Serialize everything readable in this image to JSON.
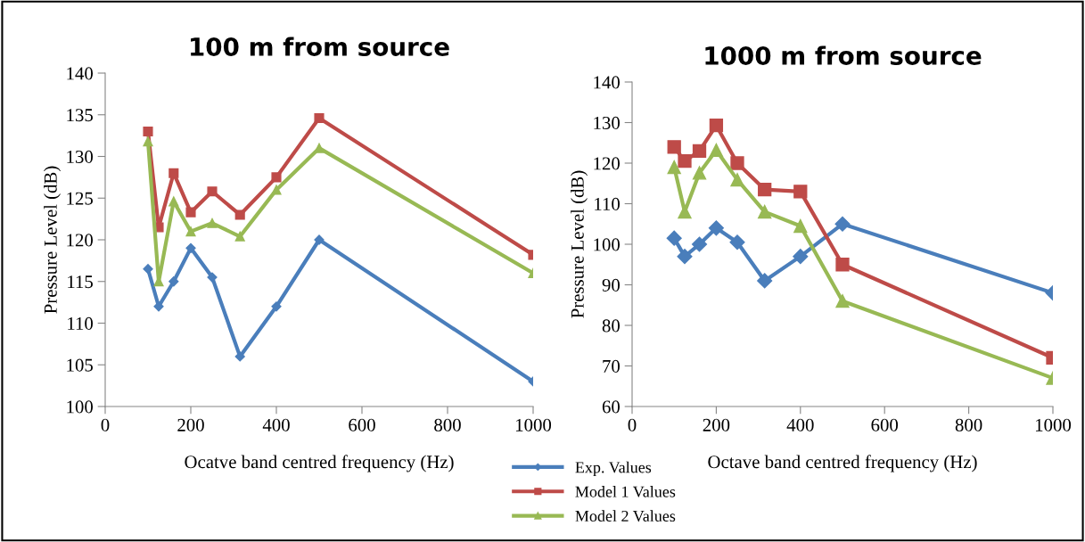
{
  "chart_data": [
    {
      "type": "line",
      "title": "100 m from source",
      "xlabel": "Ocatve band centred frequency (Hz)",
      "ylabel": "Pressure Level (dB)",
      "x": [
        100,
        125,
        160,
        200,
        250,
        315,
        400,
        500,
        1000
      ],
      "series": [
        {
          "name": "Exp. Values",
          "color": "#4a7ebb",
          "marker": "diamond",
          "values": [
            116.5,
            112,
            115,
            119,
            115.5,
            106,
            112,
            120,
            103
          ]
        },
        {
          "name": "Model 1 Values",
          "color": "#be4b48",
          "marker": "square",
          "values": [
            133,
            121.5,
            128,
            123.3,
            125.8,
            123,
            127.5,
            134.6,
            118.2
          ]
        },
        {
          "name": "Model 2 Values",
          "color": "#98b954",
          "marker": "triangle",
          "values": [
            131.8,
            115,
            124.6,
            121,
            122,
            120.4,
            126,
            131,
            116
          ]
        }
      ],
      "xlim": [
        0,
        1000
      ],
      "xticks": [
        0,
        200,
        400,
        600,
        800,
        1000
      ],
      "ylim": [
        100,
        140
      ],
      "yticks": [
        100,
        105,
        110,
        115,
        120,
        125,
        130,
        135,
        140
      ],
      "grid": false,
      "legend": "bottom right"
    },
    {
      "type": "line",
      "title": "1000 m from source",
      "xlabel": "Octave band centred frequency (Hz)",
      "ylabel": "Pressure Level (dB)",
      "x": [
        100,
        125,
        160,
        200,
        250,
        315,
        400,
        500,
        1000
      ],
      "series": [
        {
          "color": "#4a7ebb",
          "marker": "diamond",
          "values": [
            101.5,
            97,
            100,
            104,
            100.5,
            91,
            97,
            105,
            88
          ]
        },
        {
          "color": "#be4b48",
          "marker": "square",
          "values": [
            124,
            120.5,
            123,
            129.3,
            120,
            113.5,
            113,
            95,
            72
          ]
        },
        {
          "color": "#98b954",
          "marker": "triangle",
          "values": [
            119,
            108,
            117.6,
            123.2,
            115.9,
            108,
            104.5,
            86,
            67
          ]
        }
      ],
      "xlim": [
        0,
        1000
      ],
      "xticks": [
        0,
        200,
        400,
        600,
        800,
        1000
      ],
      "ylim": [
        60,
        140
      ],
      "yticks": [
        60,
        70,
        80,
        90,
        100,
        110,
        120,
        130,
        140
      ],
      "grid": false
    }
  ]
}
